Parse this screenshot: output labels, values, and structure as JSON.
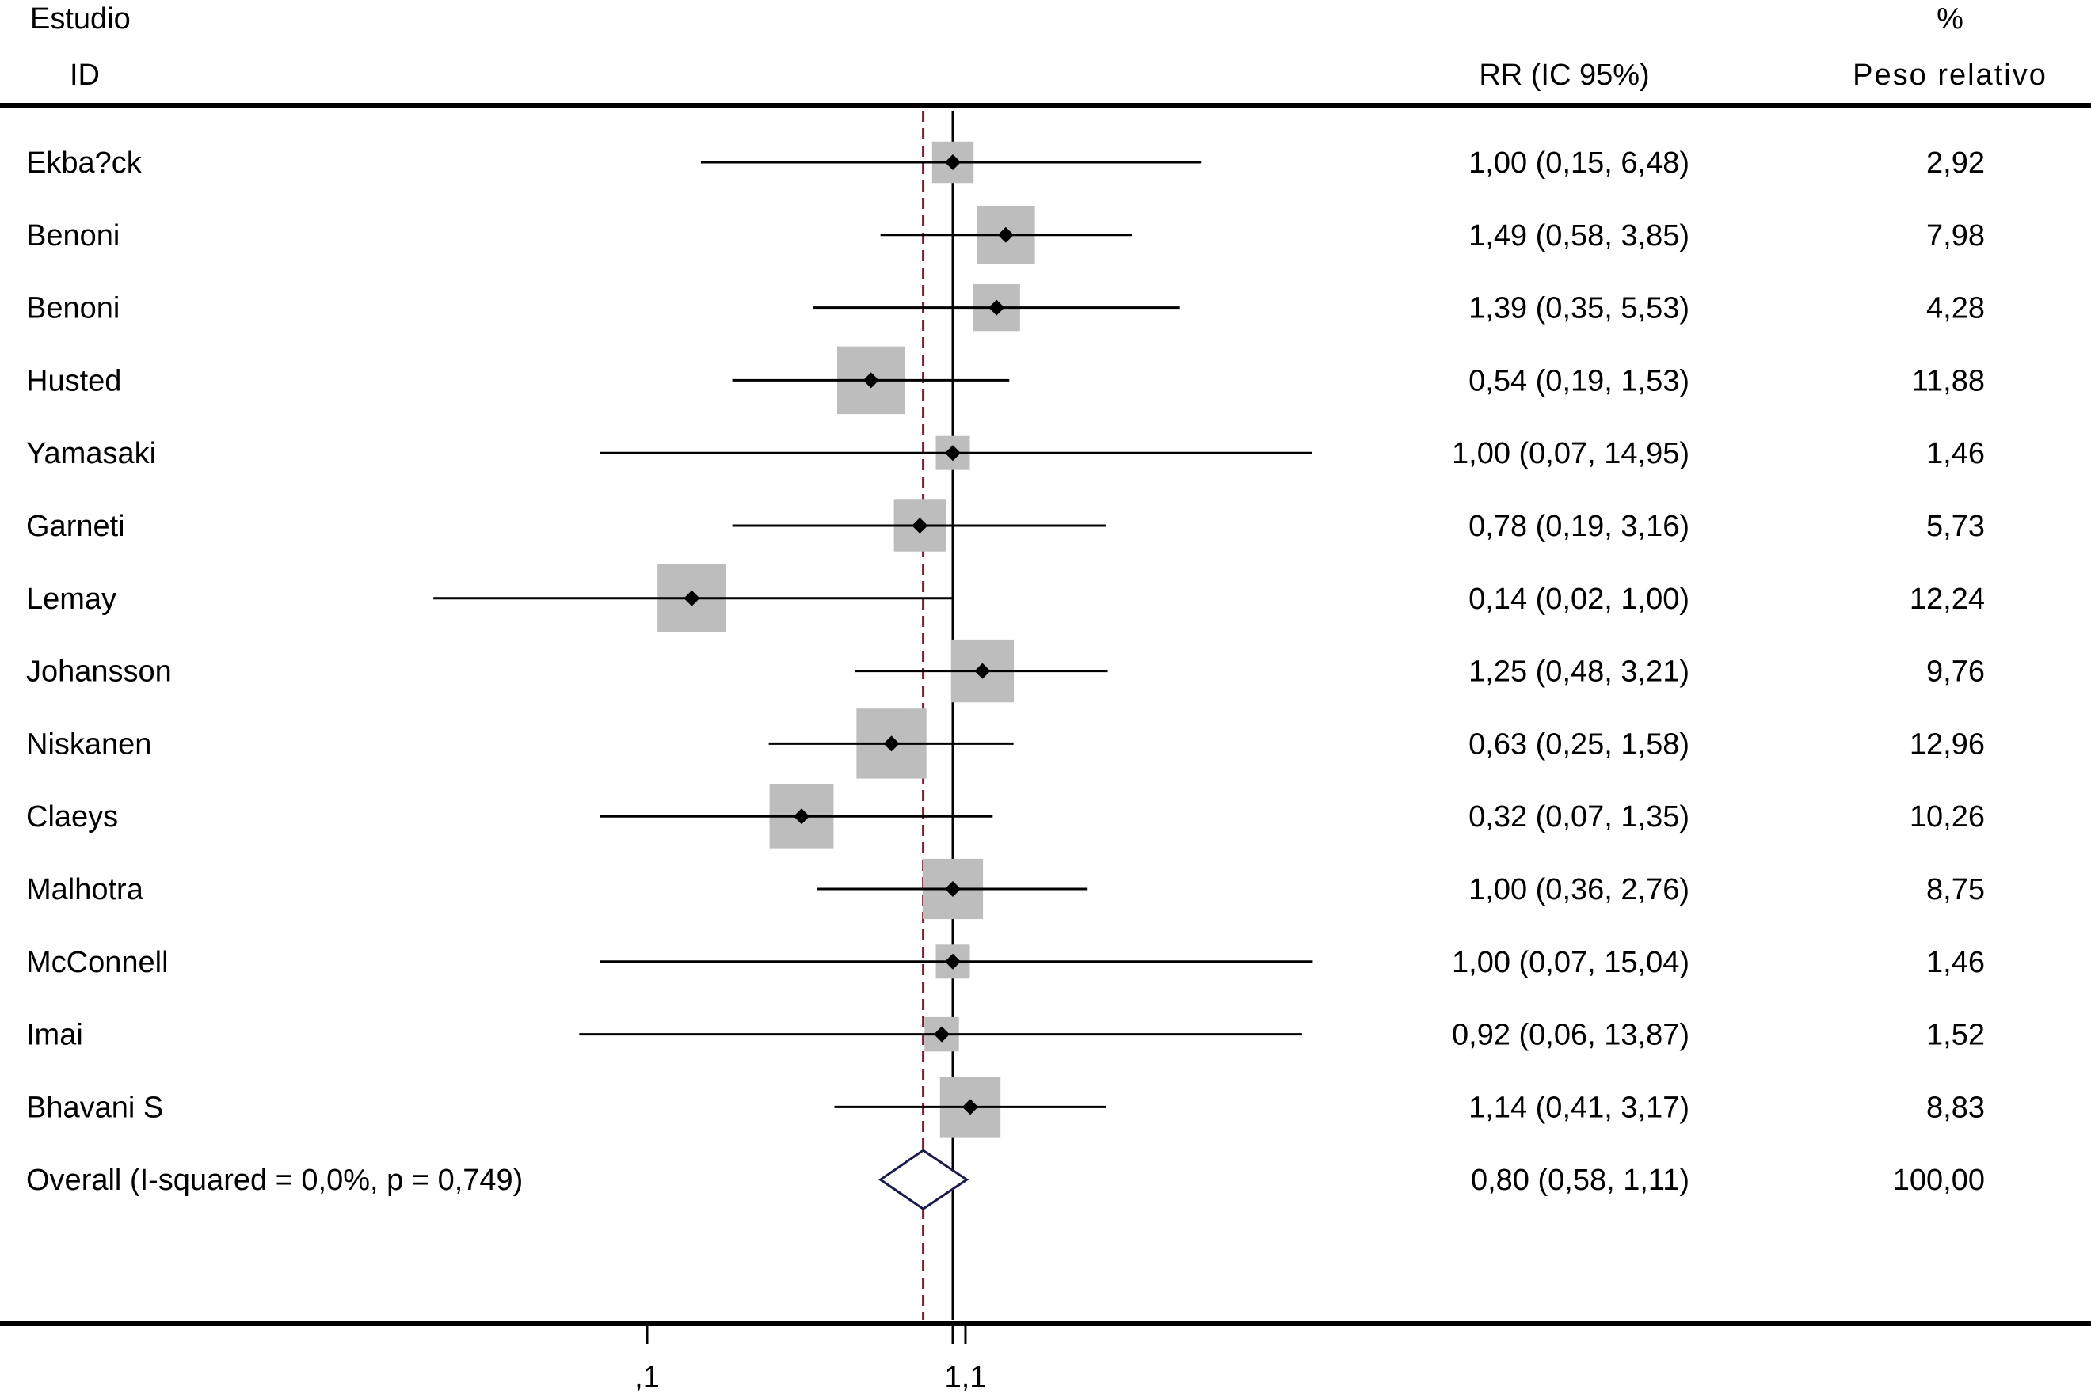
{
  "header": {
    "study_label": "Estudio",
    "id_label": "ID",
    "rr_label": "RR (IC 95%)",
    "pct_label": "%",
    "weight_label": "Peso relativo"
  },
  "chart_data": {
    "type": "forest",
    "scale": "log",
    "xlim": [
      0.01,
      100
    ],
    "ticks": [
      {
        "value": 0.1,
        "label": ",1"
      },
      {
        "value": 1,
        "label": "1"
      },
      {
        "value": 1.1,
        "label": "1,1"
      }
    ],
    "null_line": 1,
    "pooled_line": 0.8,
    "studies": [
      {
        "name": "Ekba?ck",
        "rr": 1.0,
        "lo": 0.15,
        "hi": 6.48,
        "weight": 2.92,
        "ci_text": "1,00 (0,15, 6,48)",
        "weight_text": "2,92"
      },
      {
        "name": "Benoni",
        "rr": 1.49,
        "lo": 0.58,
        "hi": 3.85,
        "weight": 7.98,
        "ci_text": "1,49 (0,58, 3,85)",
        "weight_text": "7,98"
      },
      {
        "name": "Benoni",
        "rr": 1.39,
        "lo": 0.35,
        "hi": 5.53,
        "weight": 4.28,
        "ci_text": "1,39 (0,35, 5,53)",
        "weight_text": "4,28"
      },
      {
        "name": "Husted",
        "rr": 0.54,
        "lo": 0.19,
        "hi": 1.53,
        "weight": 11.88,
        "ci_text": "0,54 (0,19, 1,53)",
        "weight_text": "11,88"
      },
      {
        "name": "Yamasaki",
        "rr": 1.0,
        "lo": 0.07,
        "hi": 14.95,
        "weight": 1.46,
        "ci_text": "1,00 (0,07, 14,95)",
        "weight_text": "1,46"
      },
      {
        "name": "Garneti",
        "rr": 0.78,
        "lo": 0.19,
        "hi": 3.16,
        "weight": 5.73,
        "ci_text": "0,78 (0,19, 3,16)",
        "weight_text": "5,73"
      },
      {
        "name": "Lemay",
        "rr": 0.14,
        "lo": 0.02,
        "hi": 1.0,
        "weight": 12.24,
        "ci_text": "0,14 (0,02, 1,00)",
        "weight_text": "12,24"
      },
      {
        "name": "Johansson",
        "rr": 1.25,
        "lo": 0.48,
        "hi": 3.21,
        "weight": 9.76,
        "ci_text": "1,25 (0,48, 3,21)",
        "weight_text": "9,76"
      },
      {
        "name": "Niskanen",
        "rr": 0.63,
        "lo": 0.25,
        "hi": 1.58,
        "weight": 12.96,
        "ci_text": "0,63 (0,25, 1,58)",
        "weight_text": "12,96"
      },
      {
        "name": "Claeys",
        "rr": 0.32,
        "lo": 0.07,
        "hi": 1.35,
        "weight": 10.26,
        "ci_text": "0,32 (0,07, 1,35)",
        "weight_text": "10,26"
      },
      {
        "name": "Malhotra",
        "rr": 1.0,
        "lo": 0.36,
        "hi": 2.76,
        "weight": 8.75,
        "ci_text": "1,00 (0,36, 2,76)",
        "weight_text": "8,75"
      },
      {
        "name": "McConnell",
        "rr": 1.0,
        "lo": 0.07,
        "hi": 15.04,
        "weight": 1.46,
        "ci_text": "1,00 (0,07, 15,04)",
        "weight_text": "1,46"
      },
      {
        "name": "Imai",
        "rr": 0.92,
        "lo": 0.06,
        "hi": 13.87,
        "weight": 1.52,
        "ci_text": "0,92 (0,06, 13,87)",
        "weight_text": "1,52"
      },
      {
        "name": "Bhavani S",
        "rr": 1.14,
        "lo": 0.41,
        "hi": 3.17,
        "weight": 8.83,
        "ci_text": "1,14 (0,41, 3,17)",
        "weight_text": "8,83"
      }
    ],
    "overall": {
      "label": "Overall  (I-squared = 0,0%, p = 0,749)",
      "rr": 0.8,
      "lo": 0.58,
      "hi": 1.11,
      "ci_text": "0,80 (0,58, 1,11)",
      "weight_text": "100,00"
    },
    "colors": {
      "box": "#bdbdbd",
      "diamond_stroke": "#1a1a4d",
      "pooled_line": "#7a1f2e",
      "line": "#000000"
    }
  }
}
